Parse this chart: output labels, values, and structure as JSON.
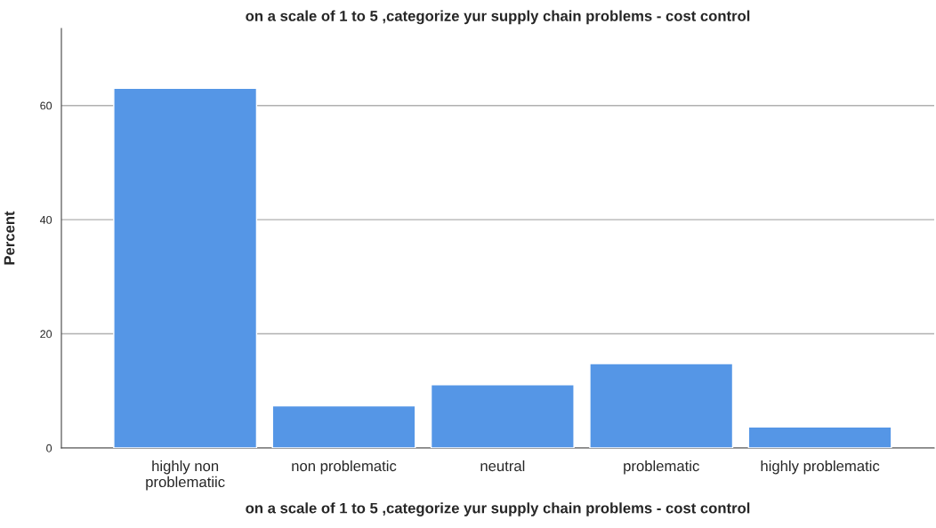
{
  "chart_data": {
    "type": "bar",
    "title": "on a scale of 1 to 5 ,categorize yur supply chain problems - cost control",
    "xlabel": "on a scale of 1 to 5 ,categorize yur supply chain problems - cost control",
    "ylabel": "Percent",
    "categories": [
      "highly non problematiic",
      "non problematic",
      "neutral",
      "problematic",
      "highly problematic"
    ],
    "values": [
      63.0,
      7.4,
      11.1,
      14.8,
      3.7
    ],
    "color": "#5596e6",
    "ylim": [
      0,
      73.5
    ],
    "yticks": [
      0,
      20,
      40,
      60
    ],
    "grid": "y"
  }
}
